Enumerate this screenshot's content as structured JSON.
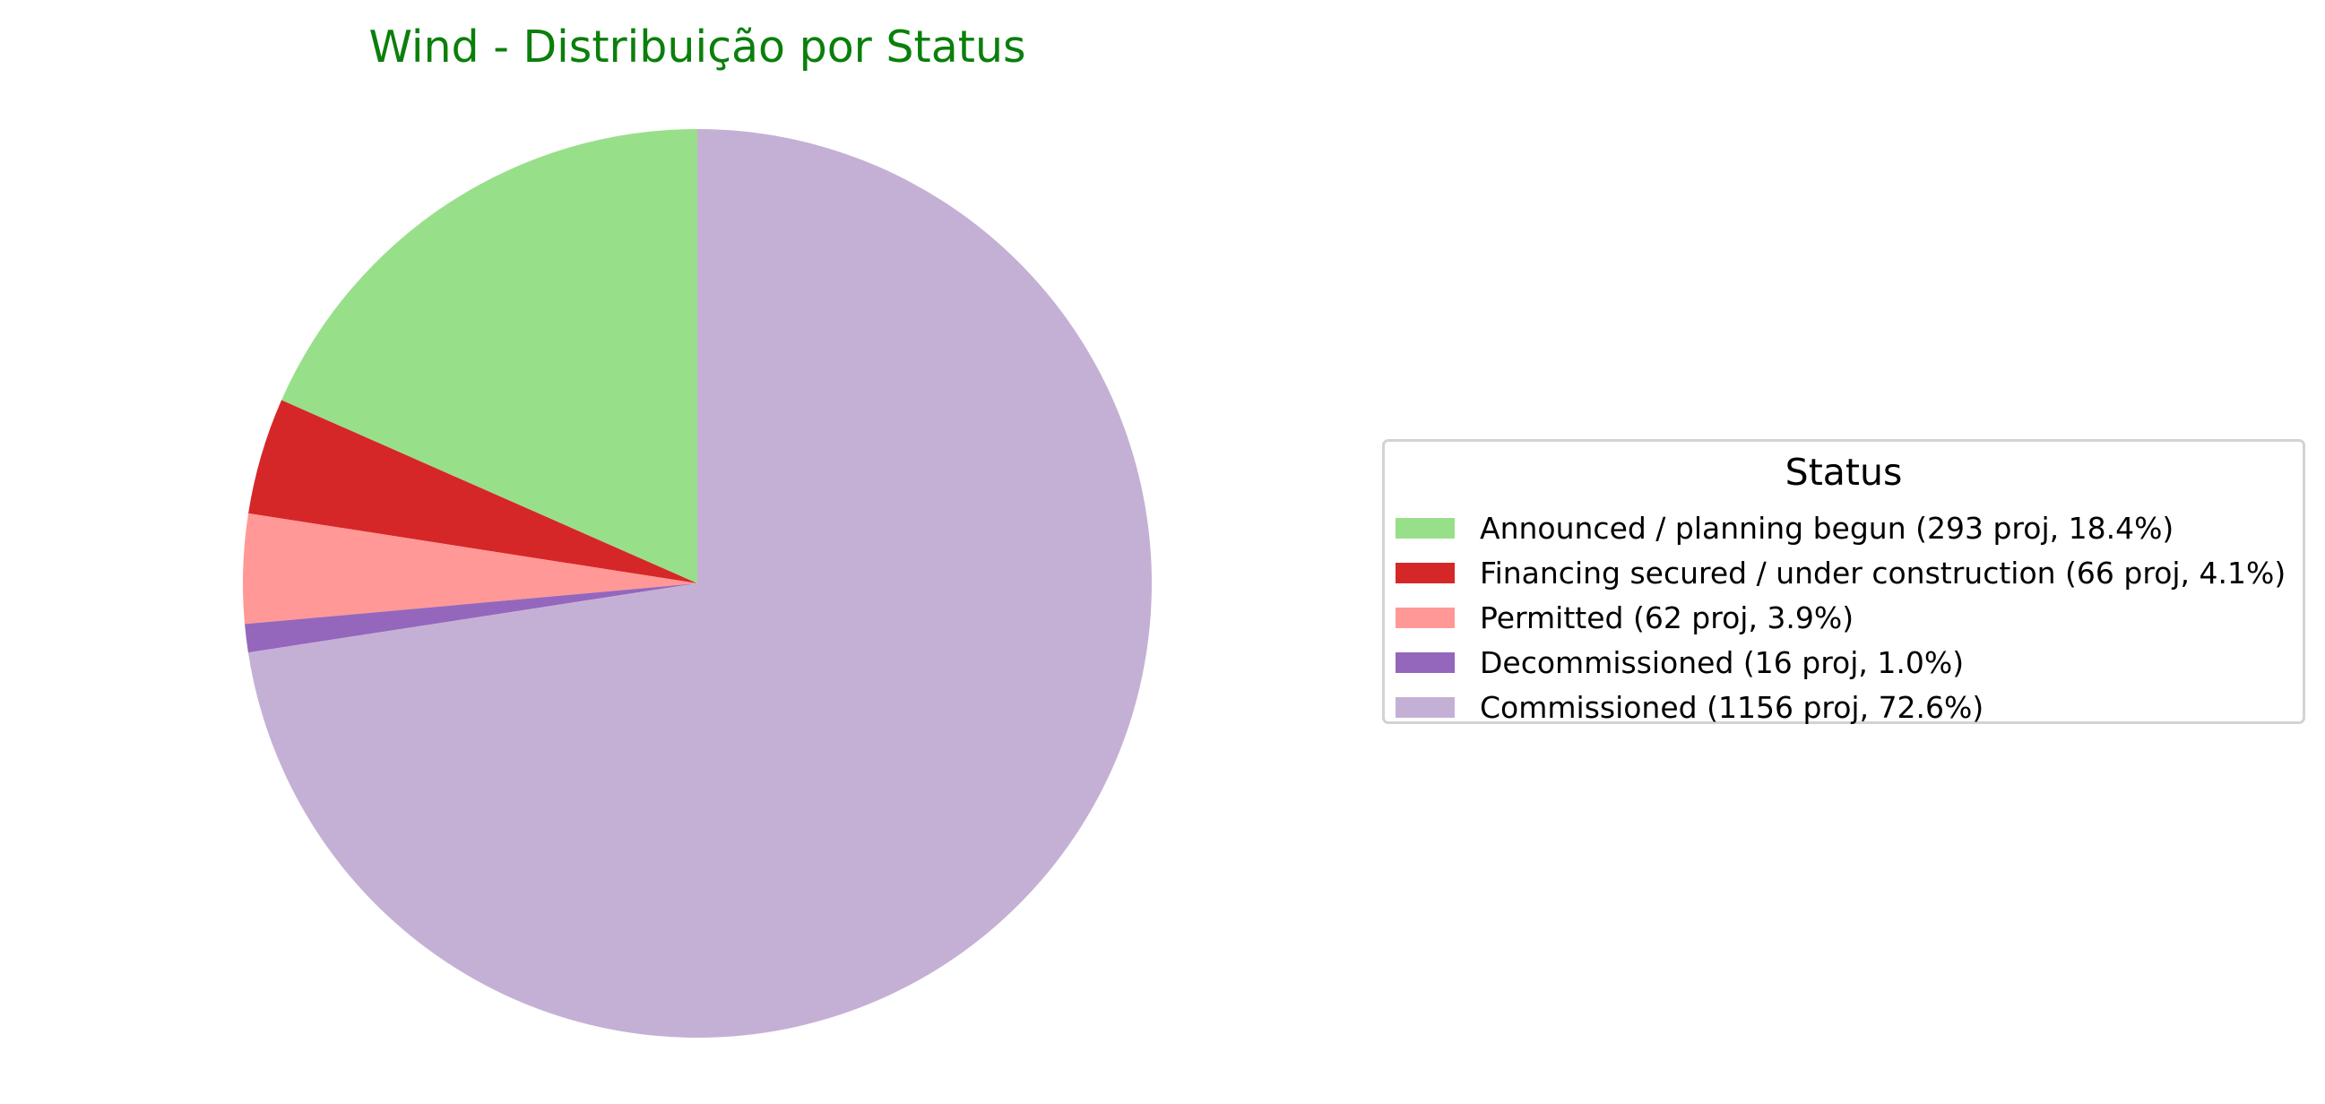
{
  "chart_data": {
    "type": "pie",
    "title": "Wind - Distribuição por Status",
    "title_color": "#0b7f0b",
    "legend_title": "Status",
    "legend_position": "right",
    "start_angle_deg": 90,
    "direction": "counterclockwise",
    "slices": [
      {
        "label": "Announced / planning begun",
        "count": 293,
        "percent": 18.4,
        "legend_text": "Announced / planning begun (293 proj, 18.4%)",
        "color": "#98df8a"
      },
      {
        "label": "Financing secured / under construction",
        "count": 66,
        "percent": 4.1,
        "legend_text": "Financing secured / under construction (66 proj, 4.1%)",
        "color": "#d62728"
      },
      {
        "label": "Permitted",
        "count": 62,
        "percent": 3.9,
        "legend_text": "Permitted (62 proj, 3.9%)",
        "color": "#ff9896"
      },
      {
        "label": "Decommissioned",
        "count": 16,
        "percent": 1.0,
        "legend_text": "Decommissioned (16 proj, 1.0%)",
        "color": "#9467bd"
      },
      {
        "label": "Commissioned",
        "count": 1156,
        "percent": 72.6,
        "legend_text": "Commissioned (1156 proj, 72.6%)",
        "color": "#c5b0d5"
      }
    ]
  }
}
